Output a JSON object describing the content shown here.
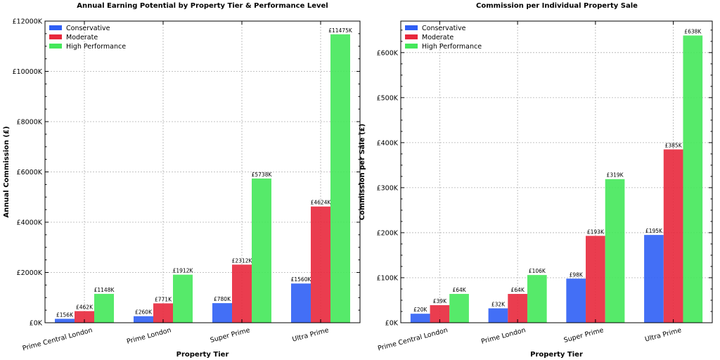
{
  "chart_data": [
    {
      "type": "bar",
      "title": "Annual Earning Potential by Property Tier & Performance Level",
      "xlabel": "Property Tier",
      "ylabel": "Annual Commission (£)",
      "categories": [
        "Prime Central London",
        "Prime London",
        "Super Prime",
        "Ultra Prime"
      ],
      "ylim": [
        0,
        12000
      ],
      "yticks": [
        0,
        2000,
        4000,
        6000,
        8000,
        10000,
        12000
      ],
      "ytick_labels": [
        "£0K",
        "£2000K",
        "£4000K",
        "£6000K",
        "£8000K",
        "£10000K",
        "£12000K"
      ],
      "grid": true,
      "legend": "top-left",
      "series": [
        {
          "name": "Conservative",
          "color": "#2f5ff5",
          "values": [
            156,
            260,
            780,
            1560
          ],
          "labels": [
            "£156K",
            "£260K",
            "£780K",
            "£1560K"
          ]
        },
        {
          "name": "Moderate",
          "color": "#e8283c",
          "values": [
            462,
            771,
            2312,
            4624
          ],
          "labels": [
            "£462K",
            "£771K",
            "£2312K",
            "£4624K"
          ]
        },
        {
          "name": "High Performance",
          "color": "#44e85a",
          "values": [
            1148,
            1912,
            5738,
            11475
          ],
          "labels": [
            "£1148K",
            "£1912K",
            "£5738K",
            "£11475K"
          ]
        }
      ]
    },
    {
      "type": "bar",
      "title": "Commission per Individual Property Sale",
      "xlabel": "Property Tier",
      "ylabel": "Commission per Sale (£)",
      "categories": [
        "Prime Central London",
        "Prime London",
        "Super Prime",
        "Ultra Prime"
      ],
      "ylim": [
        0,
        670
      ],
      "yticks": [
        0,
        100,
        200,
        300,
        400,
        500,
        600
      ],
      "ytick_labels": [
        "£0K",
        "£100K",
        "£200K",
        "£300K",
        "£400K",
        "£500K",
        "£600K"
      ],
      "grid": true,
      "legend": "top-left",
      "series": [
        {
          "name": "Conservative",
          "color": "#2f5ff5",
          "values": [
            20,
            32,
            98,
            195
          ],
          "labels": [
            "£20K",
            "£32K",
            "£98K",
            "£195K"
          ]
        },
        {
          "name": "Moderate",
          "color": "#e8283c",
          "values": [
            39,
            64,
            193,
            385
          ],
          "labels": [
            "£39K",
            "£64K",
            "£193K",
            "£385K"
          ]
        },
        {
          "name": "High Performance",
          "color": "#44e85a",
          "values": [
            64,
            106,
            319,
            638
          ],
          "labels": [
            "£64K",
            "£106K",
            "£319K",
            "£638K"
          ]
        }
      ]
    }
  ]
}
